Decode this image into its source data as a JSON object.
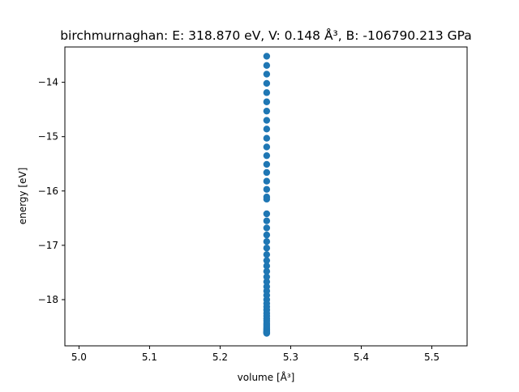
{
  "chart_data": {
    "type": "scatter",
    "title": "birchmurnaghan: E: 318.870 eV, V: 0.148 Å³, B: -106790.213 GPa",
    "xlabel": "volume [Å³]",
    "ylabel": "energy [eV]",
    "xlim": [
      4.98,
      5.55
    ],
    "ylim": [
      -18.85,
      -13.35
    ],
    "xticks": [
      5.0,
      5.1,
      5.2,
      5.3,
      5.4,
      5.5
    ],
    "xtick_labels": [
      "5.0",
      "5.1",
      "5.2",
      "5.3",
      "5.4",
      "5.5"
    ],
    "yticks": [
      -18,
      -17,
      -16,
      -15,
      -14
    ],
    "ytick_labels": [
      "−18",
      "−17",
      "−16",
      "−15",
      "−14"
    ],
    "grid": false,
    "marker_color": "#1f77b4",
    "series": [
      {
        "x": [
          5.266,
          5.266,
          5.266,
          5.266,
          5.266,
          5.266,
          5.266,
          5.266,
          5.266,
          5.266,
          5.266,
          5.266,
          5.266,
          5.266,
          5.266,
          5.266,
          5.266,
          5.266,
          5.266,
          5.266,
          5.266,
          5.266,
          5.266,
          5.266,
          5.266,
          5.266,
          5.266,
          5.266,
          5.266,
          5.266,
          5.266,
          5.266,
          5.266,
          5.266,
          5.266,
          5.266,
          5.266,
          5.266,
          5.266,
          5.266,
          5.266,
          5.266,
          5.266,
          5.266,
          5.266,
          5.266,
          5.266,
          5.266,
          5.266,
          5.266,
          5.266,
          5.266
        ],
        "y": [
          -13.52,
          -13.69,
          -13.85,
          -14.02,
          -14.19,
          -14.36,
          -14.53,
          -14.7,
          -14.86,
          -15.03,
          -15.19,
          -15.35,
          -15.51,
          -15.66,
          -15.82,
          -15.97,
          -16.11,
          -16.15,
          -16.42,
          -16.55,
          -16.68,
          -16.81,
          -16.93,
          -17.05,
          -17.17,
          -17.28,
          -17.38,
          -17.48,
          -17.58,
          -17.67,
          -17.76,
          -17.84,
          -17.92,
          -18.0,
          -18.07,
          -18.13,
          -18.19,
          -18.25,
          -18.3,
          -18.35,
          -18.39,
          -18.43,
          -18.46,
          -18.49,
          -18.52,
          -18.54,
          -18.56,
          -18.58,
          -18.59,
          -18.6,
          -18.61,
          -18.62
        ]
      }
    ]
  }
}
